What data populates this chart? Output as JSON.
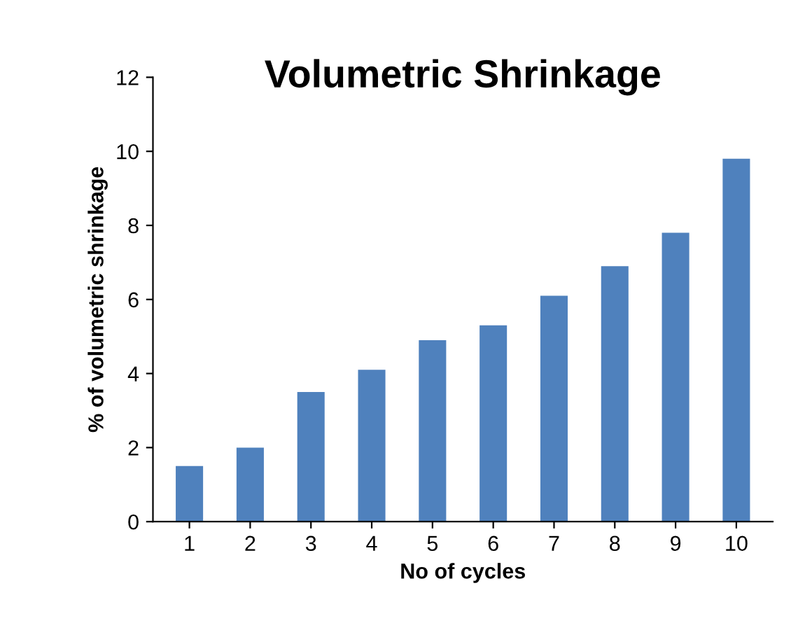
{
  "chart_data": {
    "type": "bar",
    "title": "Volumetric Shrinkage",
    "xlabel": "No of cycles",
    "ylabel": "% of volumetric shrinkage",
    "categories": [
      "1",
      "2",
      "3",
      "4",
      "5",
      "6",
      "7",
      "8",
      "9",
      "10"
    ],
    "values": [
      1.5,
      2.0,
      3.5,
      4.1,
      4.9,
      5.3,
      6.1,
      6.9,
      7.8,
      9.8
    ],
    "color": "#4f81bd",
    "ylim": [
      0,
      12
    ],
    "yticks": [
      0,
      2,
      4,
      6,
      8,
      10,
      12
    ],
    "grid": false,
    "legend": false
  }
}
